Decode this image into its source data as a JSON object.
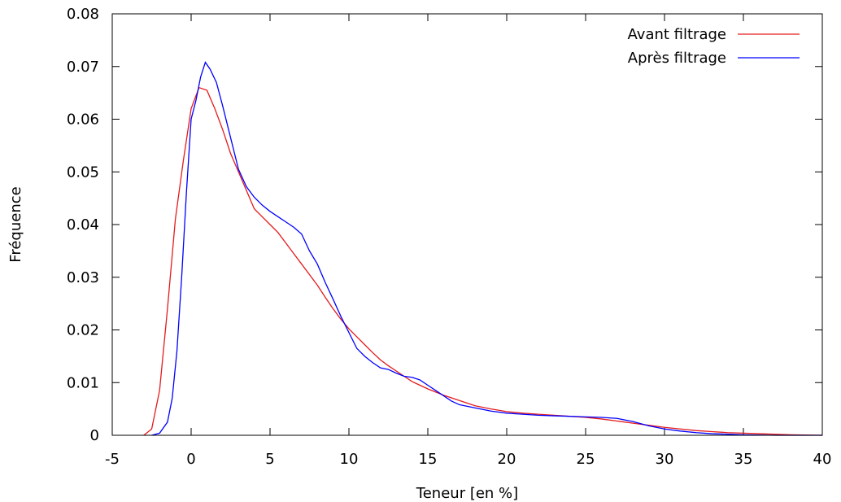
{
  "chart_data": {
    "type": "line",
    "title": "",
    "xlabel": "Teneur [en %]",
    "ylabel": "Fréquence",
    "xlim": [
      -5,
      40
    ],
    "ylim": [
      0,
      0.08
    ],
    "xticks": [
      -5,
      0,
      5,
      10,
      15,
      20,
      25,
      30,
      35,
      40
    ],
    "xtick_labels": [
      "-5",
      "0",
      "5",
      "10",
      "15",
      "20",
      "25",
      "30",
      "35",
      "40"
    ],
    "yticks": [
      0,
      0.01,
      0.02,
      0.03,
      0.04,
      0.05,
      0.06,
      0.07,
      0.08
    ],
    "ytick_labels": [
      "0",
      "0.01",
      "0.02",
      "0.03",
      "0.04",
      "0.05",
      "0.06",
      "0.07",
      "0.08"
    ],
    "grid": false,
    "legend_position": "top-right",
    "series": [
      {
        "name": "Avant filtrage",
        "color": "#e41a1c",
        "points": [
          [
            -3,
            0
          ],
          [
            -2.5,
            0.0012
          ],
          [
            -2,
            0.0085
          ],
          [
            -1.5,
            0.024
          ],
          [
            -1,
            0.041
          ],
          [
            -0.5,
            0.052
          ],
          [
            0,
            0.062
          ],
          [
            0.5,
            0.066
          ],
          [
            1,
            0.0655
          ],
          [
            1.5,
            0.062
          ],
          [
            2,
            0.058
          ],
          [
            2.5,
            0.0535
          ],
          [
            3,
            0.05
          ],
          [
            3.5,
            0.0465
          ],
          [
            4,
            0.043
          ],
          [
            4.5,
            0.0415
          ],
          [
            5,
            0.04
          ],
          [
            5.5,
            0.0385
          ],
          [
            6,
            0.0365
          ],
          [
            6.5,
            0.0345
          ],
          [
            7,
            0.0325
          ],
          [
            7.5,
            0.0305
          ],
          [
            8,
            0.0285
          ],
          [
            8.5,
            0.0262
          ],
          [
            9,
            0.024
          ],
          [
            9.5,
            0.022
          ],
          [
            10,
            0.0202
          ],
          [
            10.5,
            0.0187
          ],
          [
            11,
            0.0172
          ],
          [
            11.5,
            0.0157
          ],
          [
            12,
            0.0143
          ],
          [
            12.5,
            0.0132
          ],
          [
            13,
            0.0122
          ],
          [
            13.5,
            0.0112
          ],
          [
            14,
            0.0102
          ],
          [
            15,
            0.0088
          ],
          [
            16,
            0.0076
          ],
          [
            17,
            0.0066
          ],
          [
            18,
            0.0056
          ],
          [
            19,
            0.005
          ],
          [
            20,
            0.0045
          ],
          [
            21,
            0.0042
          ],
          [
            22,
            0.004
          ],
          [
            23,
            0.0038
          ],
          [
            24,
            0.0036
          ],
          [
            25,
            0.0034
          ],
          [
            26,
            0.0031
          ],
          [
            27,
            0.0027
          ],
          [
            28,
            0.0023
          ],
          [
            29,
            0.0019
          ],
          [
            30,
            0.0015
          ],
          [
            31,
            0.0012
          ],
          [
            32,
            0.0009
          ],
          [
            33,
            0.0007
          ],
          [
            34,
            0.0005
          ],
          [
            35,
            0.0004
          ],
          [
            36,
            0.0003
          ],
          [
            38,
            0.0001
          ],
          [
            40,
            0
          ]
        ]
      },
      {
        "name": "Après filtrage",
        "color": "#0000ff",
        "points": [
          [
            -2.5,
            0
          ],
          [
            -2,
            0.0004
          ],
          [
            -1.5,
            0.0025
          ],
          [
            -1.2,
            0.007
          ],
          [
            -0.9,
            0.016
          ],
          [
            -0.6,
            0.03
          ],
          [
            -0.3,
            0.046
          ],
          [
            0,
            0.06
          ],
          [
            0.3,
            0.0635
          ],
          [
            0.6,
            0.068
          ],
          [
            0.9,
            0.0708
          ],
          [
            1.2,
            0.0695
          ],
          [
            1.6,
            0.067
          ],
          [
            2,
            0.0625
          ],
          [
            2.5,
            0.0565
          ],
          [
            3,
            0.0505
          ],
          [
            3.5,
            0.0472
          ],
          [
            4,
            0.0452
          ],
          [
            4.5,
            0.0437
          ],
          [
            5,
            0.0425
          ],
          [
            5.5,
            0.0415
          ],
          [
            6,
            0.0405
          ],
          [
            6.5,
            0.0395
          ],
          [
            7,
            0.0382
          ],
          [
            7.5,
            0.035
          ],
          [
            8,
            0.0325
          ],
          [
            8.5,
            0.029
          ],
          [
            9,
            0.0258
          ],
          [
            9.5,
            0.0225
          ],
          [
            10,
            0.0195
          ],
          [
            10.5,
            0.0165
          ],
          [
            11,
            0.015
          ],
          [
            11.5,
            0.0138
          ],
          [
            12,
            0.0128
          ],
          [
            12.5,
            0.0125
          ],
          [
            13,
            0.0118
          ],
          [
            13.5,
            0.0112
          ],
          [
            14,
            0.011
          ],
          [
            14.5,
            0.0105
          ],
          [
            15,
            0.0095
          ],
          [
            15.5,
            0.0085
          ],
          [
            16,
            0.0075
          ],
          [
            16.5,
            0.0065
          ],
          [
            17,
            0.0058
          ],
          [
            18,
            0.0052
          ],
          [
            19,
            0.0046
          ],
          [
            20,
            0.0042
          ],
          [
            21,
            0.004
          ],
          [
            22,
            0.0038
          ],
          [
            23,
            0.0037
          ],
          [
            24,
            0.0036
          ],
          [
            25,
            0.0035
          ],
          [
            26,
            0.0034
          ],
          [
            27,
            0.0032
          ],
          [
            28,
            0.0026
          ],
          [
            29,
            0.0018
          ],
          [
            30,
            0.0012
          ],
          [
            31,
            0.0008
          ],
          [
            32,
            0.0005
          ],
          [
            33,
            0.0003
          ],
          [
            34,
            0.0002
          ],
          [
            35,
            0.0001
          ],
          [
            37,
            0
          ],
          [
            40,
            0
          ]
        ]
      }
    ]
  }
}
